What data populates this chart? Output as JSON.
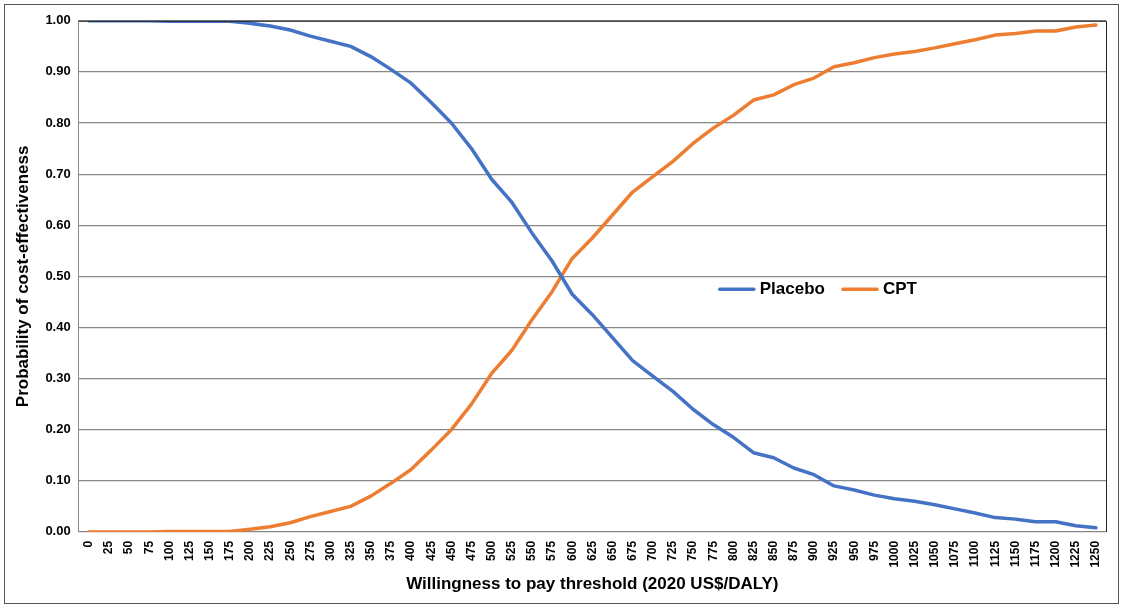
{
  "chart_data": {
    "type": "line",
    "xlabel": "Willingness to pay threshold (2020 US$/DALY)",
    "ylabel": "Probability of cost-effectiveness",
    "categories": [
      "0",
      "25",
      "50",
      "75",
      "100",
      "125",
      "150",
      "175",
      "200",
      "225",
      "250",
      "275",
      "300",
      "325",
      "350",
      "375",
      "400",
      "425",
      "450",
      "475",
      "500",
      "525",
      "550",
      "575",
      "600",
      "625",
      "650",
      "675",
      "700",
      "725",
      "750",
      "775",
      "800",
      "825",
      "850",
      "875",
      "900",
      "925",
      "950",
      "975",
      "1000",
      "1025",
      "1050",
      "1075",
      "1100",
      "1125",
      "1150",
      "1175",
      "1200",
      "1225",
      "1250"
    ],
    "series": [
      {
        "name": "Placebo",
        "color": "#4472c4",
        "values": [
          1,
          1,
          1,
          1,
          0.999,
          0.999,
          0.999,
          0.999,
          0.995,
          0.99,
          0.982,
          0.97,
          0.96,
          0.95,
          0.93,
          0.905,
          0.878,
          0.84,
          0.8,
          0.75,
          0.69,
          0.645,
          0.585,
          0.53,
          0.465,
          0.425,
          0.38,
          0.335,
          0.305,
          0.275,
          0.24,
          0.21,
          0.185,
          0.155,
          0.145,
          0.125,
          0.112,
          0.09,
          0.082,
          0.072,
          0.065,
          0.06,
          0.053,
          0.045,
          0.037,
          0.028,
          0.025,
          0.02,
          0.02,
          0.012,
          0.008
        ]
      },
      {
        "name": "CPT",
        "color": "#ed7d31",
        "values": [
          0,
          0,
          0,
          0,
          0.001,
          0.001,
          0.001,
          0.001,
          0.005,
          0.01,
          0.018,
          0.03,
          0.04,
          0.05,
          0.07,
          0.095,
          0.122,
          0.16,
          0.2,
          0.25,
          0.31,
          0.355,
          0.415,
          0.47,
          0.535,
          0.575,
          0.62,
          0.665,
          0.695,
          0.725,
          0.76,
          0.79,
          0.815,
          0.845,
          0.855,
          0.875,
          0.888,
          0.91,
          0.918,
          0.928,
          0.935,
          0.94,
          0.947,
          0.955,
          0.963,
          0.972,
          0.975,
          0.98,
          0.98,
          0.988,
          0.992
        ]
      }
    ],
    "ylim": [
      0,
      1
    ],
    "yticks": [
      {
        "value": 0,
        "label": "0.00"
      },
      {
        "value": 0.1,
        "label": "0.10"
      },
      {
        "value": 0.2,
        "label": "0.20"
      },
      {
        "value": 0.3,
        "label": "0.30"
      },
      {
        "value": 0.4,
        "label": "0.40"
      },
      {
        "value": 0.5,
        "label": "0.50"
      },
      {
        "value": 0.6,
        "label": "0.60"
      },
      {
        "value": 0.7,
        "label": "0.70"
      },
      {
        "value": 0.8,
        "label": "0.80"
      },
      {
        "value": 0.9,
        "label": "0.90"
      },
      {
        "value": 1,
        "label": "1.00"
      }
    ],
    "grid": "y",
    "legend": "right",
    "marker": "none",
    "line_style": "solid"
  }
}
